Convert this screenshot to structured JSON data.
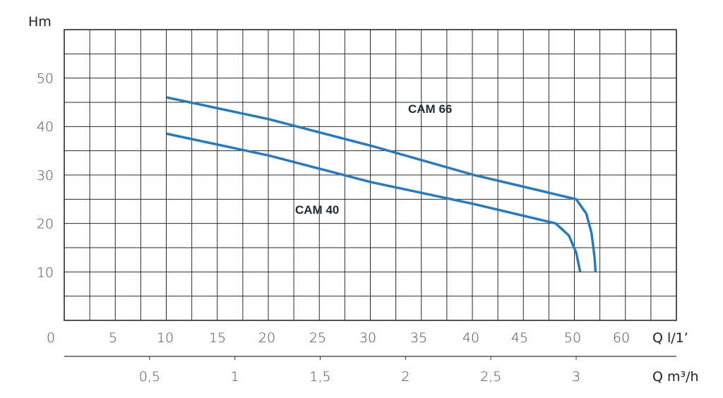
{
  "chart_data": {
    "type": "line",
    "ylabel": "Hm",
    "y_ticks": [
      "10",
      "20",
      "30",
      "40",
      "50"
    ],
    "ylim": [
      0,
      60
    ],
    "x_axis_primary": {
      "label": "Q l/1’",
      "ticks": [
        "0",
        "5",
        "10",
        "15",
        "20",
        "25",
        "30",
        "35",
        "40",
        "45",
        "50",
        "60"
      ]
    },
    "x_axis_secondary": {
      "label": "Q m³/h",
      "ticks": [
        "0,5",
        "1",
        "1,5",
        "2",
        "2,5",
        "3"
      ],
      "tick_values": [
        0.5,
        1,
        1.5,
        2,
        2.5,
        3
      ]
    },
    "grid": true,
    "series_color": "#2a7ab8",
    "series": [
      {
        "name": "CAM 66",
        "points": [
          [
            10,
            46
          ],
          [
            20,
            41.5
          ],
          [
            30,
            36
          ],
          [
            40,
            30
          ],
          [
            48,
            26
          ],
          [
            50,
            25
          ],
          [
            51,
            22
          ],
          [
            51.5,
            18
          ],
          [
            51.8,
            13
          ],
          [
            51.9,
            10
          ]
        ]
      },
      {
        "name": "CAM 40",
        "points": [
          [
            10,
            38.5
          ],
          [
            20,
            34
          ],
          [
            30,
            28.5
          ],
          [
            40,
            24
          ],
          [
            46,
            21
          ],
          [
            48,
            20
          ],
          [
            49.3,
            17.5
          ],
          [
            50,
            14
          ],
          [
            50.4,
            10
          ]
        ]
      }
    ]
  }
}
